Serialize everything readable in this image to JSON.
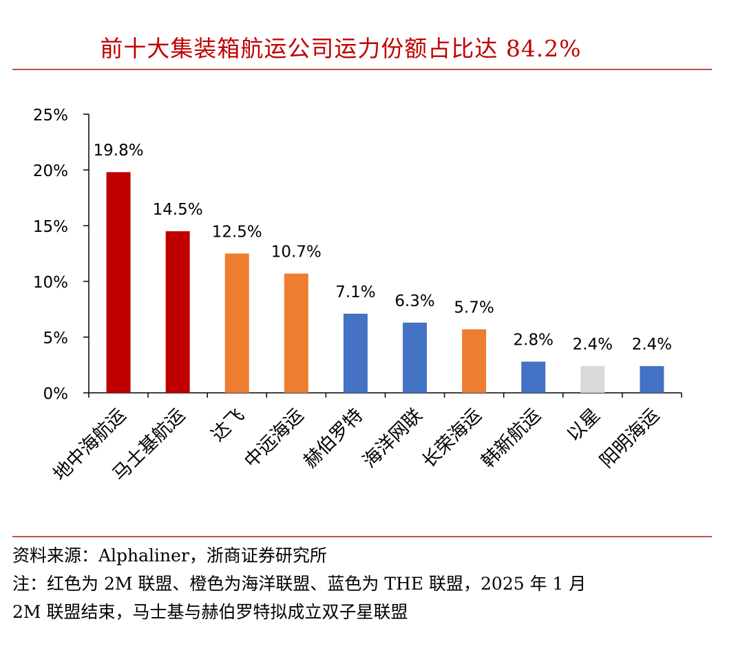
{
  "title": "前十大集装箱航运公司运力份额占比达 84.2%",
  "colors": {
    "2M": "#c00000",
    "Ocean": "#ed7d31",
    "THE": "#4472c4",
    "other": "#d9d9d9",
    "title": "#c00000",
    "rule": "#c0504d"
  },
  "chart_data": {
    "type": "bar",
    "categories": [
      "地中海航运",
      "马士基航运",
      "达飞",
      "中远海运",
      "赫伯罗特",
      "海洋网联",
      "长荣海运",
      "韩新航运",
      "以星",
      "阳明海运"
    ],
    "values": [
      19.8,
      14.5,
      12.5,
      10.7,
      7.1,
      6.3,
      5.7,
      2.8,
      2.4,
      2.4
    ],
    "labels": [
      "19.8%",
      "14.5%",
      "12.5%",
      "10.7%",
      "7.1%",
      "6.3%",
      "5.7%",
      "2.8%",
      "2.4%",
      "2.4%"
    ],
    "bar_groups": [
      "2M",
      "2M",
      "Ocean",
      "Ocean",
      "THE",
      "THE",
      "Ocean",
      "THE",
      "other",
      "THE"
    ],
    "ylim": [
      0,
      25
    ],
    "yticks": [
      0,
      5,
      10,
      15,
      20,
      25
    ],
    "ytick_labels": [
      "0%",
      "5%",
      "10%",
      "15%",
      "20%",
      "25%"
    ],
    "grid": false,
    "legend": "none"
  },
  "footnotes": {
    "source": "资料来源：Alphaliner，浙商证券研究所",
    "note_line1": "注：红色为 2M 联盟、橙色为海洋联盟、蓝色为 THE 联盟，2025 年 1 月",
    "note_line2": "2M 联盟结束，马士基与赫伯罗特拟成立双子星联盟"
  }
}
